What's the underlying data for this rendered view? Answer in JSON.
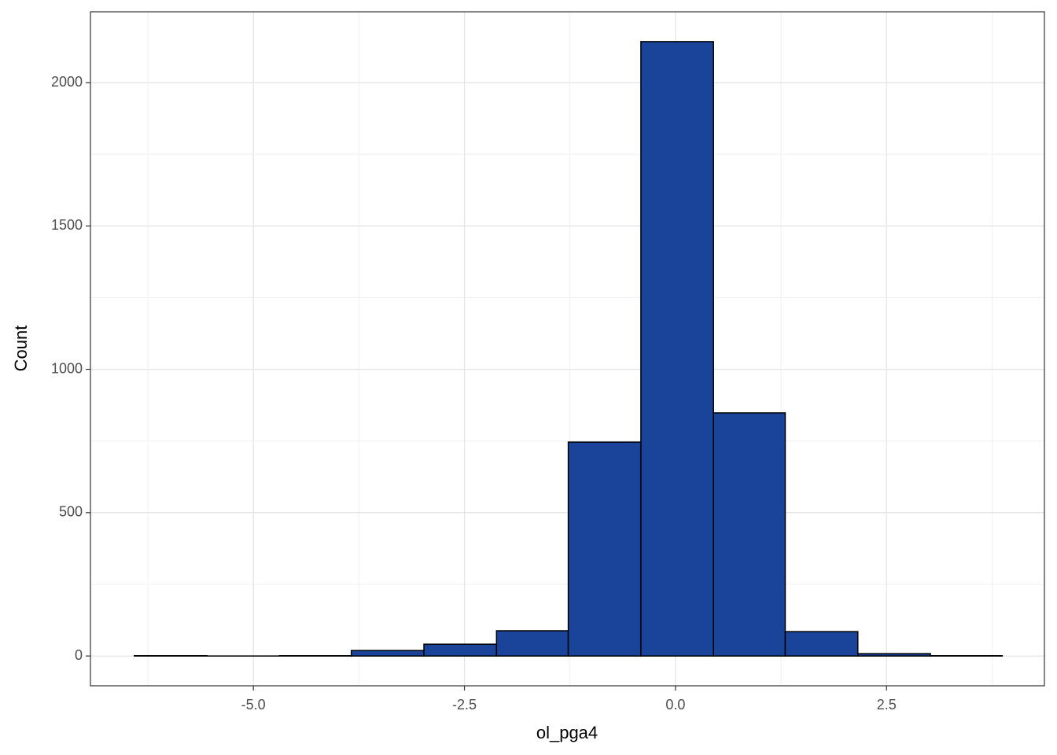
{
  "chart_data": {
    "type": "histogram",
    "x_label": "ol_pga4",
    "y_label": "Count",
    "bins": [
      -6.41,
      -5.55,
      -4.69,
      -3.84,
      -2.98,
      -2.12,
      -1.27,
      -0.41,
      0.45,
      1.3,
      2.16,
      3.02,
      3.87
    ],
    "values": [
      1,
      0,
      1,
      19,
      41,
      88,
      746,
      2143,
      848,
      85,
      8,
      1
    ],
    "color": "#1a4499",
    "xlim": [
      -6.93,
      4.37
    ],
    "xticks": [
      {
        "value": -5,
        "label": "-5.0"
      },
      {
        "value": -2.5,
        "label": "-2.5"
      },
      {
        "value": 0,
        "label": "0.0"
      },
      {
        "value": 2.5,
        "label": "2.5"
      }
    ],
    "ylim": [
      -104,
      2247
    ],
    "yticks": [
      0,
      500,
      1000,
      1500,
      2000
    ],
    "grid": true
  }
}
